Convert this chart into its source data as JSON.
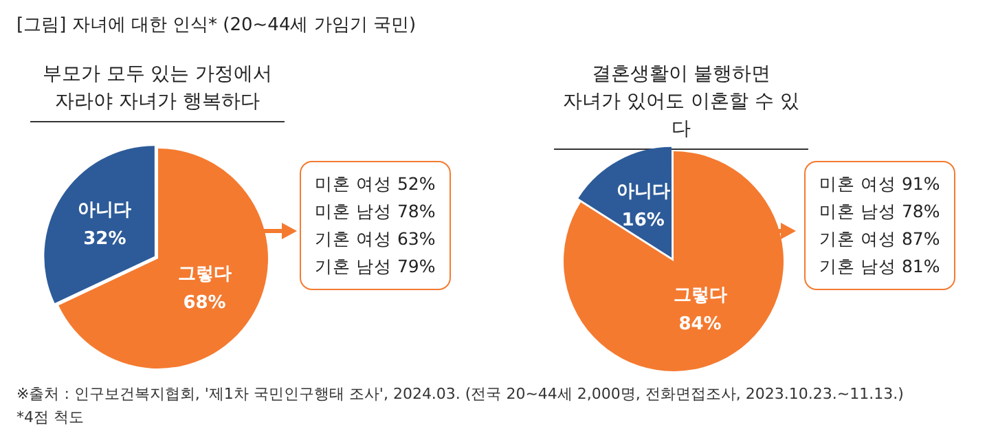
{
  "chart_data": [
    {
      "type": "pie",
      "title": "부모가 모두 있는 가정에서\n자라야 자녀가 행복하다",
      "categories": [
        "아니다",
        "그렇다"
      ],
      "values": [
        32,
        68
      ],
      "colors": [
        "#2d5b99",
        "#f47a30"
      ],
      "value_labels": [
        "32%",
        "68%"
      ],
      "legend": false,
      "annotations": [
        "[그림] 자녀에 대한 인식* (20~44세 가임기 국민)",
        "미혼 여성 52%",
        "미혼 남성 78%",
        "기혼 여성 63%",
        "기혼 남성 79%",
        "※출처 : 인구보건복지협회, '제1차 국민인구행태 조사', 2024.03. (전국 20~44세 2,000명, 전화면접조사, 2023.10.23.~11.13.)",
        "*4점 척도"
      ]
    },
    {
      "type": "pie",
      "title": "결혼생활이 불행하면\n자녀가 있어도 이혼할 수 있다",
      "categories": [
        "아니다",
        "그렇다"
      ],
      "values": [
        16,
        84
      ],
      "colors": [
        "#2d5b99",
        "#f47a30"
      ],
      "value_labels": [
        "16%",
        "84%"
      ],
      "legend": false,
      "annotations": [
        "미혼 여성 91%",
        "미혼 남성 78%",
        "기혼 여성 87%",
        "기혼 남성 81%"
      ]
    }
  ]
}
